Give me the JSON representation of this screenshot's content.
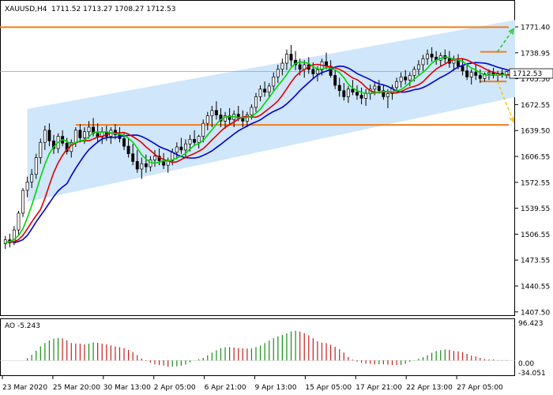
{
  "header": {
    "symbol": "XAUUSD,H4",
    "ohlc": "1711.52 1713.27 1708.27 1712.53"
  },
  "ao_header": "AO -5.243",
  "current_price_label": "1712.53",
  "colors": {
    "channel_fill": "#cfe6fb",
    "level_line": "#f07d1c",
    "bull_candle": "#ffffff",
    "bear_candle": "#000000",
    "ma_fast": "#00d400",
    "ma_mid": "#dd0000",
    "ma_slow": "#0000cc",
    "ao_up": "#148f14",
    "ao_down": "#c81e1e",
    "arrow_up": "#22cc22",
    "arrow_down": "#f5c518"
  },
  "chart_data": {
    "type": "candlestick",
    "symbol": "XAUUSD",
    "timeframe": "H4",
    "ylim": [
      1394,
      1805
    ],
    "y_ticks": [
      "1771.40",
      "1738.95",
      "1705.50",
      "1672.55",
      "1639.50",
      "1606.55",
      "1572.55",
      "1539.55",
      "1506.55",
      "1473.55",
      "1440.55",
      "1407.50"
    ],
    "x_ticks": [
      "23 Mar 2020",
      "25 Mar 20:00",
      "30 Mar 13:00",
      "2 Apr 05:00",
      "6 Apr 21:00",
      "9 Apr 13:00",
      "15 Apr 05:00",
      "17 Apr 21:00",
      "22 Apr 13:00",
      "27 Apr 05:00"
    ],
    "levels": [
      1771.4,
      1739,
      1700,
      1643
    ],
    "channel": {
      "upper_start": 1664,
      "upper_end": 1805,
      "lower_start": 1542,
      "lower_end": 1708,
      "start_index": 5,
      "end_index": 139
    },
    "arrows": [
      {
        "direction": "up",
        "from": 1739,
        "to": 1771
      },
      {
        "direction": "down",
        "from": 1700,
        "to": 1643
      }
    ],
    "candles": [
      [
        1487,
        1497,
        1480,
        1492
      ],
      [
        1492,
        1500,
        1482,
        1488
      ],
      [
        1488,
        1510,
        1485,
        1505
      ],
      [
        1505,
        1530,
        1498,
        1527
      ],
      [
        1527,
        1560,
        1522,
        1557
      ],
      [
        1557,
        1575,
        1548,
        1568
      ],
      [
        1568,
        1585,
        1560,
        1578
      ],
      [
        1578,
        1605,
        1572,
        1600
      ],
      [
        1600,
        1625,
        1592,
        1620
      ],
      [
        1620,
        1642,
        1610,
        1636
      ],
      [
        1636,
        1645,
        1615,
        1622
      ],
      [
        1622,
        1630,
        1605,
        1612
      ],
      [
        1612,
        1632,
        1606,
        1628
      ],
      [
        1628,
        1636,
        1615,
        1619
      ],
      [
        1619,
        1626,
        1604,
        1608
      ],
      [
        1608,
        1624,
        1600,
        1620
      ],
      [
        1620,
        1640,
        1614,
        1636
      ],
      [
        1636,
        1644,
        1620,
        1626
      ],
      [
        1626,
        1640,
        1618,
        1634
      ],
      [
        1634,
        1648,
        1625,
        1640
      ],
      [
        1640,
        1652,
        1628,
        1632
      ],
      [
        1632,
        1645,
        1620,
        1627
      ],
      [
        1627,
        1640,
        1618,
        1634
      ],
      [
        1634,
        1642,
        1622,
        1628
      ],
      [
        1628,
        1640,
        1618,
        1636
      ],
      [
        1636,
        1644,
        1624,
        1630
      ],
      [
        1630,
        1640,
        1620,
        1625
      ],
      [
        1625,
        1632,
        1610,
        1615
      ],
      [
        1615,
        1626,
        1600,
        1605
      ],
      [
        1605,
        1618,
        1590,
        1595
      ],
      [
        1595,
        1610,
        1580,
        1585
      ],
      [
        1585,
        1600,
        1572,
        1592
      ],
      [
        1592,
        1604,
        1580,
        1588
      ],
      [
        1588,
        1602,
        1582,
        1597
      ],
      [
        1597,
        1610,
        1588,
        1602
      ],
      [
        1602,
        1612,
        1590,
        1596
      ],
      [
        1596,
        1606,
        1585,
        1590
      ],
      [
        1590,
        1600,
        1580,
        1596
      ],
      [
        1596,
        1612,
        1590,
        1607
      ],
      [
        1607,
        1620,
        1598,
        1614
      ],
      [
        1614,
        1626,
        1605,
        1610
      ],
      [
        1610,
        1624,
        1600,
        1618
      ],
      [
        1618,
        1630,
        1608,
        1624
      ],
      [
        1624,
        1636,
        1615,
        1620
      ],
      [
        1620,
        1630,
        1612,
        1628
      ],
      [
        1628,
        1650,
        1620,
        1645
      ],
      [
        1645,
        1660,
        1636,
        1655
      ],
      [
        1655,
        1668,
        1640,
        1662
      ],
      [
        1662,
        1674,
        1650,
        1656
      ],
      [
        1656,
        1665,
        1640,
        1648
      ],
      [
        1648,
        1660,
        1638,
        1655
      ],
      [
        1655,
        1665,
        1642,
        1650
      ],
      [
        1650,
        1662,
        1640,
        1657
      ],
      [
        1657,
        1668,
        1648,
        1652
      ],
      [
        1652,
        1662,
        1640,
        1648
      ],
      [
        1648,
        1660,
        1640,
        1656
      ],
      [
        1656,
        1670,
        1650,
        1666
      ],
      [
        1666,
        1685,
        1660,
        1680
      ],
      [
        1680,
        1695,
        1674,
        1690
      ],
      [
        1690,
        1700,
        1680,
        1686
      ],
      [
        1686,
        1698,
        1678,
        1694
      ],
      [
        1694,
        1712,
        1688,
        1706
      ],
      [
        1706,
        1722,
        1698,
        1716
      ],
      [
        1716,
        1730,
        1708,
        1724
      ],
      [
        1724,
        1742,
        1715,
        1736
      ],
      [
        1736,
        1748,
        1720,
        1728
      ],
      [
        1728,
        1740,
        1715,
        1722
      ],
      [
        1722,
        1730,
        1708,
        1716
      ],
      [
        1716,
        1728,
        1705,
        1722
      ],
      [
        1722,
        1732,
        1710,
        1716
      ],
      [
        1716,
        1725,
        1704,
        1710
      ],
      [
        1710,
        1720,
        1700,
        1715
      ],
      [
        1715,
        1730,
        1708,
        1726
      ],
      [
        1726,
        1738,
        1716,
        1720
      ],
      [
        1720,
        1728,
        1705,
        1708
      ],
      [
        1708,
        1716,
        1690,
        1695
      ],
      [
        1695,
        1705,
        1680,
        1688
      ],
      [
        1688,
        1698,
        1675,
        1680
      ],
      [
        1680,
        1694,
        1672,
        1690
      ],
      [
        1690,
        1702,
        1682,
        1686
      ],
      [
        1686,
        1695,
        1676,
        1682
      ],
      [
        1682,
        1692,
        1670,
        1678
      ],
      [
        1678,
        1690,
        1668,
        1684
      ],
      [
        1684,
        1696,
        1676,
        1690
      ],
      [
        1690,
        1700,
        1682,
        1694
      ],
      [
        1694,
        1702,
        1684,
        1688
      ],
      [
        1688,
        1696,
        1676,
        1680
      ],
      [
        1680,
        1690,
        1665,
        1684
      ],
      [
        1684,
        1696,
        1676,
        1692
      ],
      [
        1692,
        1705,
        1686,
        1700
      ],
      [
        1700,
        1712,
        1692,
        1706
      ],
      [
        1706,
        1715,
        1696,
        1702
      ],
      [
        1702,
        1712,
        1694,
        1708
      ],
      [
        1708,
        1720,
        1700,
        1716
      ],
      [
        1716,
        1728,
        1708,
        1722
      ],
      [
        1722,
        1735,
        1714,
        1730
      ],
      [
        1730,
        1742,
        1722,
        1736
      ],
      [
        1736,
        1745,
        1726,
        1732
      ],
      [
        1732,
        1740,
        1722,
        1728
      ],
      [
        1728,
        1738,
        1720,
        1734
      ],
      [
        1734,
        1742,
        1724,
        1730
      ],
      [
        1730,
        1740,
        1718,
        1724
      ],
      [
        1724,
        1734,
        1714,
        1728
      ],
      [
        1728,
        1736,
        1716,
        1720
      ],
      [
        1720,
        1730,
        1708,
        1714
      ],
      [
        1714,
        1724,
        1702,
        1706
      ],
      [
        1706,
        1716,
        1696,
        1712
      ],
      [
        1712,
        1722,
        1702,
        1708
      ],
      [
        1708,
        1716,
        1698,
        1704
      ],
      [
        1704,
        1712,
        1700,
        1710
      ],
      [
        1710,
        1716,
        1702,
        1712
      ],
      [
        1712,
        1718,
        1704,
        1708
      ],
      [
        1708,
        1714,
        1700,
        1711
      ],
      [
        1711,
        1716,
        1705,
        1709
      ],
      [
        1709,
        1714,
        1704,
        1713
      ]
    ]
  }
}
